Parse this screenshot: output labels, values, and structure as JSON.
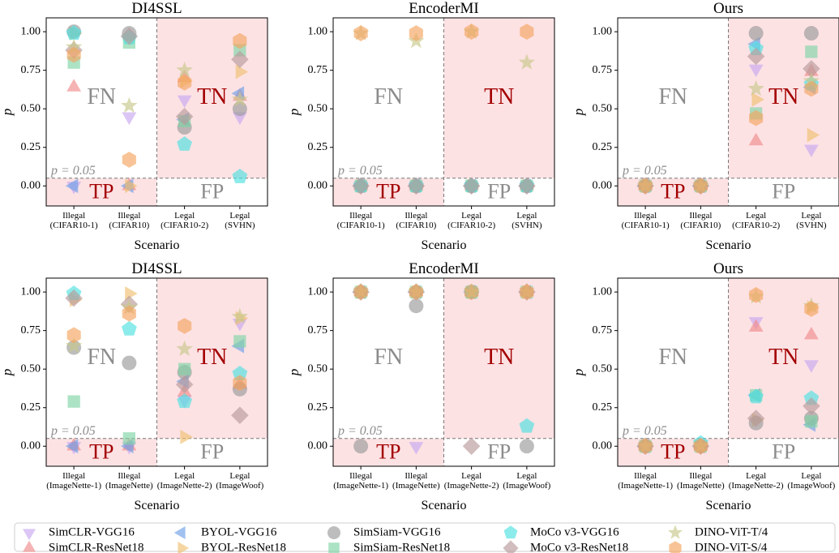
{
  "figure": {
    "legend": [
      {
        "name": "SimCLR-VGG16",
        "marker": "triangle-down",
        "color": "#c8a8f0"
      },
      {
        "name": "BYOL-VGG16",
        "marker": "triangle-left",
        "color": "#6f9fe8"
      },
      {
        "name": "SimSiam-VGG16",
        "marker": "circle",
        "color": "#9a9a9a"
      },
      {
        "name": "MoCo v3-VGG16",
        "marker": "pentagon",
        "color": "#4fe0e0"
      },
      {
        "name": "DINO-ViT-T/4",
        "marker": "star",
        "color": "#c7c78a"
      },
      {
        "name": "SimCLR-ResNet18",
        "marker": "triangle-up",
        "color": "#f08a8a"
      },
      {
        "name": "BYOL-ResNet18",
        "marker": "triangle-right",
        "color": "#f0c070"
      },
      {
        "name": "SimSiam-ResNet18",
        "marker": "square",
        "color": "#7fd4a6"
      },
      {
        "name": "MoCo v3-ResNet18",
        "marker": "diamond",
        "color": "#b89a9a"
      },
      {
        "name": "DINO-ViT-S/4",
        "marker": "hexagon",
        "color": "#f5a560"
      }
    ],
    "colors": {
      "shade": "#fde2e4",
      "dark_red": "#a30000",
      "gray_text": "#8c8c8c",
      "threshold_line": "#777777"
    }
  },
  "chart_data": [
    {
      "type": "scatter",
      "title": "DI4SSL",
      "xlabel": "Scenario",
      "ylabel": "p",
      "ylim": [
        -0.13,
        1.09
      ],
      "yticks": [
        "0.00",
        "0.25",
        "0.50",
        "0.75",
        "1.00"
      ],
      "categories": [
        "Illegal\n(CIFAR10-1)",
        "Illegal\n(CIFAR10)",
        "Legal\n(CIFAR10-2)",
        "Legal\n(SVHN)"
      ],
      "threshold": 0.05,
      "threshold_label": "p = 0.05",
      "region_labels": {
        "FN": "FN",
        "TN": "TN",
        "TP": "TP",
        "FP": "FP"
      },
      "series": [
        {
          "name": "SimCLR-VGG16",
          "values": [
            0.0,
            0.45,
            0.56,
            0.45
          ]
        },
        {
          "name": "SimCLR-ResNet18",
          "values": [
            0.64,
            0.0,
            0.7,
            0.58
          ]
        },
        {
          "name": "BYOL-VGG16",
          "values": [
            0.0,
            0.0,
            0.43,
            0.6
          ]
        },
        {
          "name": "BYOL-ResNet18",
          "values": [
            0.99,
            0.0,
            0.68,
            0.74
          ]
        },
        {
          "name": "SimSiam-VGG16",
          "values": [
            1.0,
            0.99,
            0.38,
            0.5
          ]
        },
        {
          "name": "SimSiam-ResNet18",
          "values": [
            0.8,
            0.93,
            0.42,
            0.88
          ]
        },
        {
          "name": "MoCo v3-VGG16",
          "values": [
            0.99,
            0.96,
            0.27,
            0.06
          ]
        },
        {
          "name": "MoCo v3-ResNet18",
          "values": [
            0.88,
            0.97,
            0.45,
            0.82
          ]
        },
        {
          "name": "DINO-ViT-T/4",
          "values": [
            0.9,
            0.52,
            0.75,
            0.56
          ]
        },
        {
          "name": "DINO-ViT-S/4",
          "values": [
            0.85,
            0.17,
            0.67,
            0.94
          ]
        }
      ]
    },
    {
      "type": "scatter",
      "title": "EncoderMI",
      "xlabel": "Scenario",
      "ylabel": "p",
      "ylim": [
        -0.13,
        1.09
      ],
      "yticks": [
        "0.00",
        "0.25",
        "0.50",
        "0.75",
        "1.00"
      ],
      "categories": [
        "Illegal\n(CIFAR10-1)",
        "Illegal\n(CIFAR10)",
        "Legal\n(CIFAR10-2)",
        "Legal\n(SVHN)"
      ],
      "threshold": 0.05,
      "threshold_label": "p = 0.05",
      "region_labels": {
        "FN": "FN",
        "TN": "TN",
        "TP": "TP",
        "FP": "FP"
      },
      "series": [
        {
          "name": "SimCLR-VGG16",
          "values": [
            0.0,
            0.0,
            0.0,
            0.0
          ]
        },
        {
          "name": "SimCLR-ResNet18",
          "values": [
            0.0,
            0.0,
            0.0,
            0.0
          ]
        },
        {
          "name": "BYOL-VGG16",
          "values": [
            0.0,
            0.0,
            0.0,
            0.0
          ]
        },
        {
          "name": "BYOL-ResNet18",
          "values": [
            0.0,
            0.0,
            0.0,
            0.0
          ]
        },
        {
          "name": "SimSiam-VGG16",
          "values": [
            0.0,
            0.0,
            0.0,
            0.0
          ]
        },
        {
          "name": "SimSiam-ResNet18",
          "values": [
            0.0,
            0.0,
            0.0,
            0.0
          ]
        },
        {
          "name": "MoCo v3-VGG16",
          "values": [
            0.0,
            0.0,
            0.0,
            0.0
          ]
        },
        {
          "name": "MoCo v3-ResNet18",
          "values": [
            0.0,
            0.0,
            0.0,
            0.0
          ]
        },
        {
          "name": "DINO-ViT-T/4",
          "values": [
            0.99,
            0.94,
            1.0,
            0.8
          ]
        },
        {
          "name": "DINO-ViT-S/4",
          "values": [
            0.99,
            0.99,
            1.0,
            1.0
          ]
        }
      ]
    },
    {
      "type": "scatter",
      "title": "Ours",
      "xlabel": "Scenario",
      "ylabel": "p",
      "ylim": [
        -0.13,
        1.09
      ],
      "yticks": [
        "0.00",
        "0.25",
        "0.50",
        "0.75",
        "1.00"
      ],
      "categories": [
        "Illegal\n(CIFAR10-1)",
        "Illegal\n(CIFAR10)",
        "Legal\n(CIFAR10-2)",
        "Legal\n(SVHN)"
      ],
      "threshold": 0.05,
      "threshold_label": "p = 0.05",
      "region_labels": {
        "FN": "FN",
        "TN": "TN",
        "TP": "TP",
        "FP": "FP"
      },
      "series": [
        {
          "name": "SimCLR-VGG16",
          "values": [
            0.0,
            0.0,
            0.76,
            0.24
          ]
        },
        {
          "name": "SimCLR-ResNet18",
          "values": [
            0.0,
            0.0,
            0.29,
            0.74
          ]
        },
        {
          "name": "BYOL-VGG16",
          "values": [
            0.0,
            0.0,
            0.92,
            0.64
          ]
        },
        {
          "name": "BYOL-ResNet18",
          "values": [
            0.0,
            0.0,
            0.56,
            0.33
          ]
        },
        {
          "name": "SimSiam-VGG16",
          "values": [
            0.0,
            0.0,
            0.99,
            0.99
          ]
        },
        {
          "name": "SimSiam-ResNet18",
          "values": [
            0.0,
            0.0,
            0.47,
            0.87
          ]
        },
        {
          "name": "MoCo v3-VGG16",
          "values": [
            0.0,
            0.0,
            0.89,
            0.66
          ]
        },
        {
          "name": "MoCo v3-ResNet18",
          "values": [
            0.0,
            0.0,
            0.84,
            0.76
          ]
        },
        {
          "name": "DINO-ViT-T/4",
          "values": [
            0.0,
            0.0,
            0.63,
            0.68
          ]
        },
        {
          "name": "DINO-ViT-S/4",
          "values": [
            0.0,
            0.0,
            0.44,
            0.63
          ]
        }
      ]
    },
    {
      "type": "scatter",
      "title": "DI4SSL",
      "xlabel": "Scenario",
      "ylabel": "p",
      "ylim": [
        -0.13,
        1.09
      ],
      "yticks": [
        "0.00",
        "0.25",
        "0.50",
        "0.75",
        "1.00"
      ],
      "categories": [
        "Illegal\n(ImageNette-1)",
        "Illegal\n(ImageNette)",
        "Legal\n(ImageNette-2)",
        "Legal\n(ImageWoof)"
      ],
      "threshold": 0.05,
      "threshold_label": "p = 0.05",
      "region_labels": {
        "FN": "FN",
        "TN": "TN",
        "TP": "TP",
        "FP": "FP"
      },
      "series": [
        {
          "name": "SimCLR-VGG16",
          "values": [
            0.0,
            0.0,
            0.3,
            0.8
          ]
        },
        {
          "name": "SimCLR-ResNet18",
          "values": [
            0.0,
            0.0,
            0.35,
            0.4
          ]
        },
        {
          "name": "BYOL-VGG16",
          "values": [
            0.0,
            0.0,
            0.42,
            0.65
          ]
        },
        {
          "name": "BYOL-ResNet18",
          "values": [
            0.95,
            0.99,
            0.06,
            0.83
          ]
        },
        {
          "name": "SimSiam-VGG16",
          "values": [
            0.64,
            0.54,
            0.48,
            0.37
          ]
        },
        {
          "name": "SimSiam-ResNet18",
          "values": [
            0.29,
            0.05,
            0.5,
            0.68
          ]
        },
        {
          "name": "MoCo v3-VGG16",
          "values": [
            0.99,
            0.76,
            0.29,
            0.47
          ]
        },
        {
          "name": "MoCo v3-ResNet18",
          "values": [
            0.96,
            0.92,
            0.4,
            0.2
          ]
        },
        {
          "name": "DINO-ViT-T/4",
          "values": [
            0.65,
            0.9,
            0.63,
            0.84
          ]
        },
        {
          "name": "DINO-ViT-S/4",
          "values": [
            0.72,
            0.86,
            0.78,
            0.41
          ]
        }
      ]
    },
    {
      "type": "scatter",
      "title": "EncoderMI",
      "xlabel": "Scenario",
      "ylabel": "p",
      "ylim": [
        -0.13,
        1.09
      ],
      "yticks": [
        "0.00",
        "0.25",
        "0.50",
        "0.75",
        "1.00"
      ],
      "categories": [
        "Illegal\n(ImageNette-1)",
        "Illegal\n(ImageNette)",
        "Legal\n(ImageNette-2)",
        "Legal\n(ImageWoof)"
      ],
      "threshold": 0.05,
      "threshold_label": "p = 0.05",
      "region_labels": {
        "FN": "FN",
        "TN": "TN",
        "TP": "TP",
        "FP": "FP"
      },
      "series": [
        {
          "name": "SimCLR-VGG16",
          "values": [
            1.0,
            0.0,
            1.0,
            1.0
          ]
        },
        {
          "name": "SimCLR-ResNet18",
          "values": [
            1.0,
            1.0,
            1.0,
            1.0
          ]
        },
        {
          "name": "BYOL-VGG16",
          "values": [
            1.0,
            1.0,
            1.0,
            1.0
          ]
        },
        {
          "name": "BYOL-ResNet18",
          "values": [
            1.0,
            1.0,
            1.0,
            1.0
          ]
        },
        {
          "name": "SimSiam-VGG16",
          "values": [
            0.0,
            0.91,
            1.0,
            0.0
          ]
        },
        {
          "name": "SimSiam-ResNet18",
          "values": [
            1.0,
            1.0,
            1.0,
            1.0
          ]
        },
        {
          "name": "MoCo v3-VGG16",
          "values": [
            1.0,
            1.0,
            1.0,
            0.13
          ]
        },
        {
          "name": "MoCo v3-ResNet18",
          "values": [
            1.0,
            1.0,
            0.0,
            1.0
          ]
        },
        {
          "name": "DINO-ViT-T/4",
          "values": [
            1.0,
            1.0,
            1.0,
            1.0
          ]
        },
        {
          "name": "DINO-ViT-S/4",
          "values": [
            1.0,
            1.0,
            1.0,
            1.0
          ]
        }
      ]
    },
    {
      "type": "scatter",
      "title": "Ours",
      "xlabel": "Scenario",
      "ylabel": "p",
      "ylim": [
        -0.13,
        1.09
      ],
      "yticks": [
        "0.00",
        "0.25",
        "0.50",
        "0.75",
        "1.00"
      ],
      "categories": [
        "Illegal\n(ImageNette-1)",
        "Illegal\n(ImageNette)",
        "Legal\n(ImageNette-2)",
        "Legal\n(ImageWoof)"
      ],
      "threshold": 0.05,
      "threshold_label": "p = 0.05",
      "region_labels": {
        "FN": "FN",
        "TN": "TN",
        "TP": "TP",
        "FP": "FP"
      },
      "series": [
        {
          "name": "SimCLR-VGG16",
          "values": [
            0.0,
            0.0,
            0.81,
            0.53
          ]
        },
        {
          "name": "SimCLR-ResNet18",
          "values": [
            0.0,
            0.0,
            0.77,
            0.72
          ]
        },
        {
          "name": "BYOL-VGG16",
          "values": [
            0.0,
            0.0,
            0.33,
            0.14
          ]
        },
        {
          "name": "BYOL-ResNet18",
          "values": [
            0.0,
            0.0,
            0.17,
            0.9
          ]
        },
        {
          "name": "SimSiam-VGG16",
          "values": [
            0.0,
            0.0,
            0.15,
            0.18
          ]
        },
        {
          "name": "SimSiam-ResNet18",
          "values": [
            0.0,
            0.0,
            0.33,
            0.16
          ]
        },
        {
          "name": "MoCo v3-VGG16",
          "values": [
            0.0,
            0.02,
            0.32,
            0.31
          ]
        },
        {
          "name": "MoCo v3-ResNet18",
          "values": [
            0.0,
            0.0,
            0.18,
            0.26
          ]
        },
        {
          "name": "DINO-ViT-T/4",
          "values": [
            0.0,
            0.0,
            0.97,
            0.91
          ]
        },
        {
          "name": "DINO-ViT-S/4",
          "values": [
            0.0,
            0.0,
            0.98,
            0.89
          ]
        }
      ]
    }
  ]
}
